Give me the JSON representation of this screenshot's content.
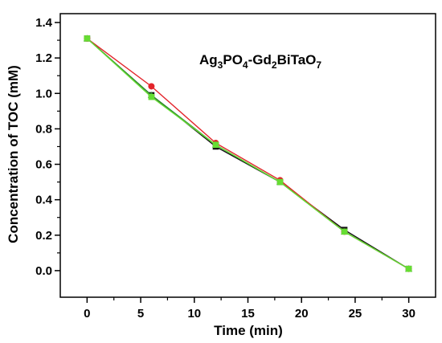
{
  "chart_data": {
    "type": "line",
    "title": "",
    "xlabel": "Time (min)",
    "ylabel": "Concentration of TOC (mM)",
    "xlim": [
      -2.5,
      32.5
    ],
    "ylim": [
      -0.15,
      1.45
    ],
    "xticks": [
      0,
      5,
      10,
      15,
      20,
      25,
      30
    ],
    "xtick_labels": [
      "0",
      "5",
      "10",
      "15",
      "20",
      "25",
      "30"
    ],
    "yticks": [
      0.0,
      0.2,
      0.4,
      0.6,
      0.8,
      1.0,
      1.2,
      1.4
    ],
    "ytick_labels": [
      "0.0",
      "0.2",
      "0.4",
      "0.6",
      "0.8",
      "1.0",
      "1.2",
      "1.4"
    ],
    "grid": false,
    "annotation": {
      "parts": [
        {
          "text": "Ag",
          "sub": false
        },
        {
          "text": "3",
          "sub": true
        },
        {
          "text": "PO",
          "sub": false
        },
        {
          "text": "4",
          "sub": true
        },
        {
          "text": "-Gd",
          "sub": false
        },
        {
          "text": "2",
          "sub": true
        },
        {
          "text": "BiTaO",
          "sub": false
        },
        {
          "text": "7",
          "sub": true
        }
      ]
    },
    "series": [
      {
        "color": "#111111",
        "marker": "square",
        "x": [
          0,
          6,
          12,
          18,
          24,
          30
        ],
        "y": [
          1.31,
          0.99,
          0.7,
          0.5,
          0.23,
          0.01
        ]
      },
      {
        "color": "#e3242b",
        "marker": "circle",
        "x": [
          0,
          6,
          12,
          18,
          24,
          30
        ],
        "y": [
          1.31,
          1.04,
          0.72,
          0.51,
          0.22,
          0.01
        ]
      },
      {
        "color": "#2e8b2e",
        "marker": "triangle",
        "x": [
          0,
          6,
          12,
          18,
          24,
          30
        ],
        "y": [
          1.31,
          0.99,
          0.71,
          0.5,
          0.22,
          0.01
        ]
      },
      {
        "color": "#66dd33",
        "marker": "square",
        "x": [
          0,
          6,
          12,
          18,
          24,
          30
        ],
        "y": [
          1.31,
          0.98,
          0.71,
          0.5,
          0.22,
          0.01
        ]
      }
    ]
  }
}
